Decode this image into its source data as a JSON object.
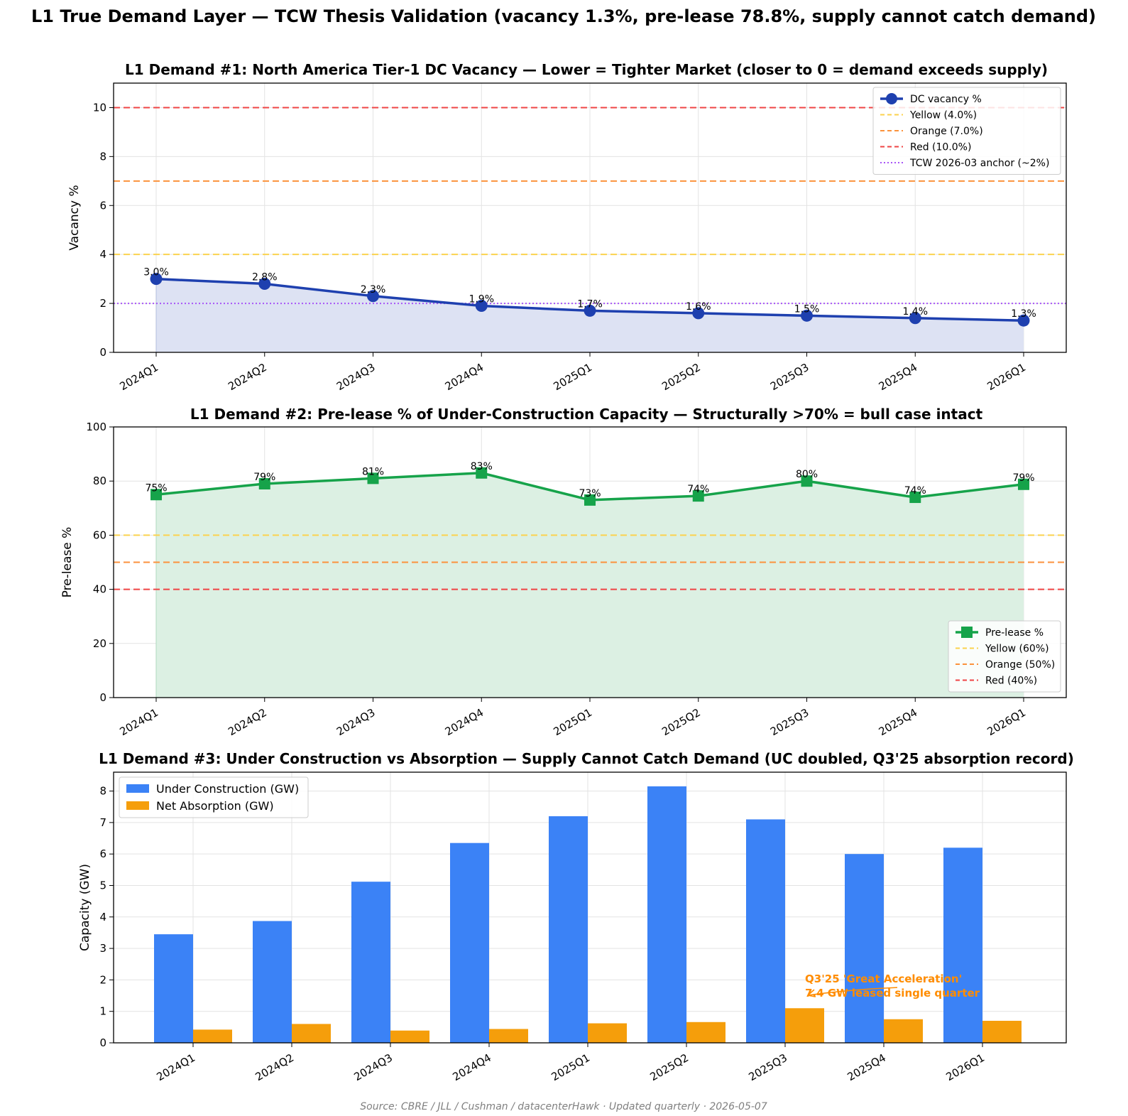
{
  "suptitle": "L1 True Demand Layer — TCW Thesis Validation (vacancy 1.3%, pre-lease 78.8%, supply cannot catch demand)",
  "source": "Source: CBRE / JLL / Cushman / datacenterHawk · Updated quarterly · 2026-05-07",
  "colors": {
    "vacancy": "#1e40af",
    "vacancy_fill": "#dde2f3",
    "prelease": "#16a34a",
    "prelease_fill": "#dcf0e3",
    "yellow": "#fbd24e",
    "orange": "#fb923c",
    "red": "#ef4444",
    "anchor": "#a855f7",
    "uc": "#3b82f6",
    "absorption": "#f59e0b",
    "annotation": "#ff8c00"
  },
  "chart_data": [
    {
      "type": "line",
      "title": "L1 Demand #1: North America Tier-1 DC Vacancy — Lower = Tighter Market (closer to 0 = demand exceeds supply)",
      "xlabel": "",
      "ylabel": "Vacancy %",
      "categories": [
        "2024Q1",
        "2024Q2",
        "2024Q3",
        "2024Q4",
        "2025Q1",
        "2025Q2",
        "2025Q3",
        "2025Q4",
        "2026Q1"
      ],
      "series": [
        {
          "name": "DC vacancy %",
          "values": [
            3.0,
            2.8,
            2.3,
            1.9,
            1.7,
            1.6,
            1.5,
            1.4,
            1.3
          ],
          "labels": [
            "3.0%",
            "2.8%",
            "2.3%",
            "1.9%",
            "1.7%",
            "1.6%",
            "1.5%",
            "1.4%",
            "1.3%"
          ]
        }
      ],
      "thresholds": [
        {
          "name": "Yellow (4.0%)",
          "value": 4.0,
          "style": "dashed",
          "color_key": "yellow"
        },
        {
          "name": "Orange (7.0%)",
          "value": 7.0,
          "style": "dashed",
          "color_key": "orange"
        },
        {
          "name": "Red (10.0%)",
          "value": 10.0,
          "style": "dashed",
          "color_key": "red"
        },
        {
          "name": "TCW 2026-03 anchor (~2%)",
          "value": 2.0,
          "style": "dotted",
          "color_key": "anchor"
        }
      ],
      "ylim": [
        0,
        11
      ],
      "yticks": [
        0,
        2,
        4,
        6,
        8,
        10
      ],
      "grid": true,
      "legend": "top-right"
    },
    {
      "type": "line",
      "title": "L1 Demand #2: Pre-lease % of Under-Construction Capacity — Structurally >70% = bull case intact",
      "xlabel": "",
      "ylabel": "Pre-lease %",
      "categories": [
        "2024Q1",
        "2024Q2",
        "2024Q3",
        "2024Q4",
        "2025Q1",
        "2025Q2",
        "2025Q3",
        "2025Q4",
        "2026Q1"
      ],
      "series": [
        {
          "name": "Pre-lease %",
          "values": [
            75,
            79,
            81,
            83,
            73,
            74.5,
            80,
            74,
            78.8
          ],
          "labels": [
            "75%",
            "79%",
            "81%",
            "83%",
            "73%",
            "74%",
            "80%",
            "74%",
            "79%"
          ]
        }
      ],
      "thresholds": [
        {
          "name": "Yellow (60%)",
          "value": 60,
          "style": "dashed",
          "color_key": "yellow"
        },
        {
          "name": "Orange (50%)",
          "value": 50,
          "style": "dashed",
          "color_key": "orange"
        },
        {
          "name": "Red (40%)",
          "value": 40,
          "style": "dashed",
          "color_key": "red"
        }
      ],
      "ylim": [
        0,
        100
      ],
      "yticks": [
        0,
        20,
        40,
        60,
        80,
        100
      ],
      "grid": true,
      "legend": "bottom-right"
    },
    {
      "type": "bar",
      "title": "L1 Demand #3: Under Construction vs Absorption — Supply Cannot Catch Demand (UC doubled, Q3'25 absorption record)",
      "xlabel": "",
      "ylabel": "Capacity (GW)",
      "categories": [
        "2024Q1",
        "2024Q2",
        "2024Q3",
        "2024Q4",
        "2025Q1",
        "2025Q2",
        "2025Q3",
        "2025Q4",
        "2026Q1"
      ],
      "series": [
        {
          "name": "Under Construction (GW)",
          "values": [
            3.45,
            3.87,
            5.12,
            6.35,
            7.2,
            8.15,
            7.1,
            6.0,
            6.2
          ]
        },
        {
          "name": "Net Absorption (GW)",
          "values": [
            0.42,
            0.6,
            0.39,
            0.44,
            0.62,
            0.66,
            1.1,
            0.75,
            0.7
          ]
        }
      ],
      "annotation": {
        "lines": [
          "Q3'25 'Great Acceleration'",
          "7.4 GW leased single quarter"
        ],
        "category": "2025Q3",
        "value": 1.6
      },
      "ylim": [
        0,
        8.6
      ],
      "yticks": [
        0,
        1,
        2,
        3,
        4,
        5,
        6,
        7,
        8
      ],
      "grid": true,
      "legend": "top-left"
    }
  ]
}
